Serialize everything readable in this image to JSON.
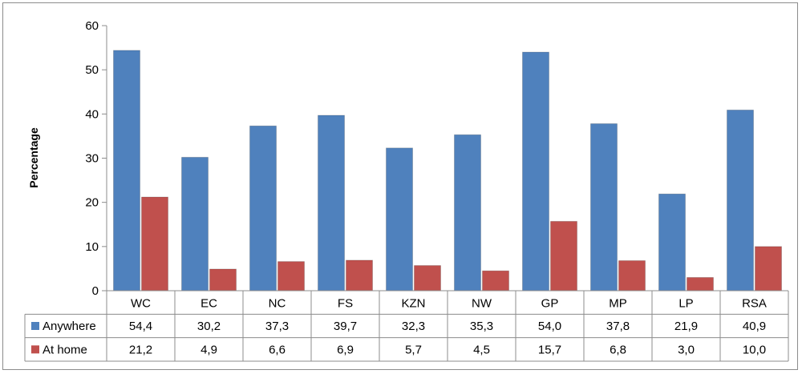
{
  "chart_data": {
    "type": "bar",
    "ylabel": "Percentage",
    "ylim": [
      0,
      60
    ],
    "yticks": [
      0,
      10,
      20,
      30,
      40,
      50,
      60
    ],
    "categories": [
      "WC",
      "EC",
      "NC",
      "FS",
      "KZN",
      "NW",
      "GP",
      "MP",
      "LP",
      "RSA"
    ],
    "series": [
      {
        "name": "Anywhere",
        "color": "#4f81bd",
        "values": [
          54.4,
          30.2,
          37.3,
          39.7,
          32.3,
          35.3,
          54.0,
          37.8,
          21.9,
          40.9
        ],
        "labels": [
          "54,4",
          "30,2",
          "37,3",
          "39,7",
          "32,3",
          "35,3",
          "54,0",
          "37,8",
          "21,9",
          "40,9"
        ]
      },
      {
        "name": "At home",
        "color": "#c0504d",
        "values": [
          21.2,
          4.9,
          6.6,
          6.9,
          5.7,
          4.5,
          15.7,
          6.8,
          3.0,
          10.0
        ],
        "labels": [
          "21,2",
          "4,9",
          "6,6",
          "6,9",
          "5,7",
          "4,5",
          "15,7",
          "6,8",
          "3,0",
          "10,0"
        ]
      }
    ],
    "grid": false,
    "legend": "data-table"
  }
}
